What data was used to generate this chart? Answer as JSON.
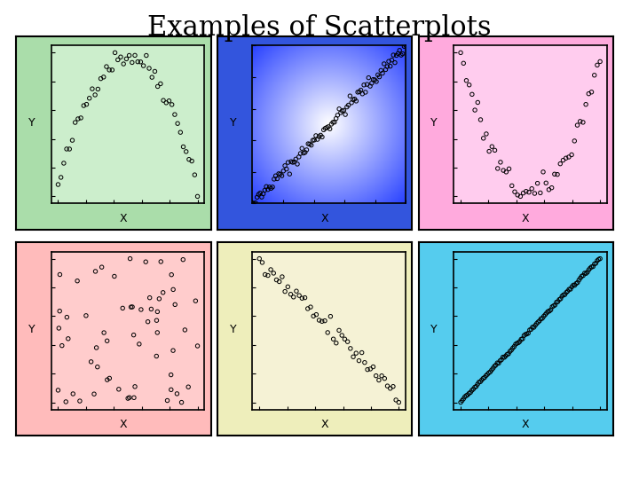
{
  "title": "Examples of Scatterplots",
  "title_fontsize": 22,
  "outer_colors": [
    "#aaddaa",
    "#3355dd",
    "#ffaadd",
    "#ffbbbb",
    "#eeeebb",
    "#55ccee"
  ],
  "inner_colors": [
    "#cceecc",
    "#gradient",
    "#ffccee",
    "#ffcccc",
    "#f5f2d5",
    "#55ccee"
  ],
  "xlabel": "X",
  "ylabel": "Y",
  "seed": 42,
  "n_points_curve": 50,
  "n_points_linear": 100,
  "n_points_random": 60
}
